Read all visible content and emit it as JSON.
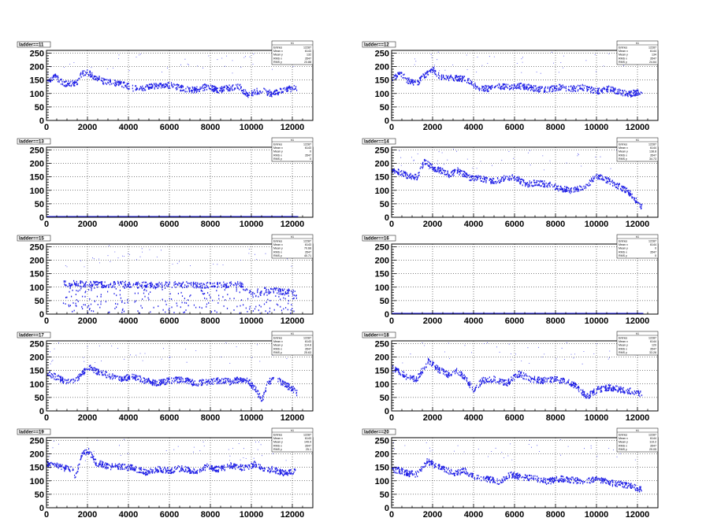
{
  "figure": {
    "footer": ""
  },
  "colors": {
    "marker": "#1f1fe6",
    "frame": "#000000",
    "grid": "#000000"
  },
  "chart_data": [
    {
      "type": "scatter",
      "title": "ladder==11",
      "xlim": [
        0,
        13000
      ],
      "ylim": [
        0,
        260
      ],
      "xticks": [
        "0",
        "2000",
        "4000",
        "6000",
        "8000",
        "10000",
        "12000"
      ],
      "yticks": [
        "0",
        "50",
        "100",
        "150",
        "200",
        "250"
      ],
      "stats": {
        "name": "h1",
        "rows": [
          {
            "label": "Entries",
            "value": "12287"
          },
          {
            "label": "Mean x",
            "value": "6143"
          },
          {
            "label": "Mean y",
            "value": "132"
          },
          {
            "label": "RMS x",
            "value": "3547"
          },
          {
            "label": "RMS y",
            "value": "23.88"
          }
        ]
      },
      "profile": [
        [
          0,
          150
        ],
        [
          400,
          165
        ],
        [
          800,
          140
        ],
        [
          1200,
          138
        ],
        [
          1500,
          145
        ],
        [
          1700,
          178
        ],
        [
          2000,
          182
        ],
        [
          2300,
          165
        ],
        [
          2700,
          150
        ],
        [
          3200,
          142
        ],
        [
          3800,
          135
        ],
        [
          4300,
          120
        ],
        [
          4700,
          122
        ],
        [
          5200,
          130
        ],
        [
          5700,
          135
        ],
        [
          6200,
          130
        ],
        [
          6700,
          120
        ],
        [
          7200,
          115
        ],
        [
          7800,
          128
        ],
        [
          8400,
          115
        ],
        [
          9000,
          125
        ],
        [
          9400,
          128
        ],
        [
          9800,
          95
        ],
        [
          10200,
          110
        ],
        [
          10600,
          112
        ],
        [
          11000,
          100
        ],
        [
          11600,
          118
        ],
        [
          12200,
          122
        ]
      ]
    },
    {
      "type": "scatter",
      "title": "ladder==12",
      "xlim": [
        0,
        13000
      ],
      "ylim": [
        0,
        260
      ],
      "xticks": [
        "0",
        "2000",
        "4000",
        "6000",
        "8000",
        "10000",
        "12000"
      ],
      "yticks": [
        "0",
        "50",
        "100",
        "150",
        "200",
        "250"
      ],
      "stats": {
        "name": "h1",
        "rows": [
          {
            "label": "Entries",
            "value": "12287"
          },
          {
            "label": "Mean x",
            "value": "6144"
          },
          {
            "label": "Mean y",
            "value": "134"
          },
          {
            "label": "RMS x",
            "value": "3547"
          },
          {
            "label": "RMS y",
            "value": "24.64"
          }
        ]
      },
      "profile": [
        [
          0,
          160
        ],
        [
          400,
          175
        ],
        [
          800,
          150
        ],
        [
          1200,
          140
        ],
        [
          1600,
          170
        ],
        [
          2000,
          190
        ],
        [
          2400,
          160
        ],
        [
          3000,
          160
        ],
        [
          3600,
          155
        ],
        [
          4200,
          125
        ],
        [
          4700,
          120
        ],
        [
          5200,
          128
        ],
        [
          5800,
          125
        ],
        [
          6400,
          130
        ],
        [
          7000,
          120
        ],
        [
          7600,
          118
        ],
        [
          8200,
          125
        ],
        [
          8800,
          120
        ],
        [
          9400,
          125
        ],
        [
          10000,
          110
        ],
        [
          10600,
          120
        ],
        [
          11000,
          110
        ],
        [
          11600,
          100
        ],
        [
          12200,
          112
        ]
      ]
    },
    {
      "type": "scatter",
      "title": "ladder==13",
      "xlim": [
        0,
        13000
      ],
      "ylim": [
        0,
        260
      ],
      "xticks": [
        "0",
        "2000",
        "4000",
        "6000",
        "8000",
        "10000",
        "12000"
      ],
      "yticks": [
        "0",
        "50",
        "100",
        "150",
        "200",
        "250"
      ],
      "stats": {
        "name": "h1",
        "rows": [
          {
            "label": "Entries",
            "value": "12287"
          },
          {
            "label": "Mean x",
            "value": "6143"
          },
          {
            "label": "Mean y",
            "value": "0"
          },
          {
            "label": "RMS x",
            "value": "3547"
          },
          {
            "label": "RMS y",
            "value": "0"
          }
        ]
      },
      "profile": [
        [
          0,
          1
        ],
        [
          12287,
          1
        ]
      ]
    },
    {
      "type": "scatter",
      "title": "ladder==14",
      "xlim": [
        0,
        13000
      ],
      "ylim": [
        0,
        260
      ],
      "xticks": [
        "0",
        "2000",
        "4000",
        "6000",
        "8000",
        "10000",
        "12000"
      ],
      "yticks": [
        "0",
        "50",
        "100",
        "150",
        "200",
        "250"
      ],
      "stats": {
        "name": "h1",
        "rows": [
          {
            "label": "Entries",
            "value": "12287"
          },
          {
            "label": "Mean x",
            "value": "6144"
          },
          {
            "label": "Mean y",
            "value": "138.8"
          },
          {
            "label": "RMS x",
            "value": "3547"
          },
          {
            "label": "RMS y",
            "value": "34.73"
          }
        ]
      },
      "profile": [
        [
          0,
          175
        ],
        [
          400,
          170
        ],
        [
          800,
          155
        ],
        [
          1200,
          150
        ],
        [
          1600,
          210
        ],
        [
          2000,
          185
        ],
        [
          2400,
          175
        ],
        [
          2800,
          160
        ],
        [
          3200,
          175
        ],
        [
          3800,
          150
        ],
        [
          4400,
          145
        ],
        [
          5000,
          135
        ],
        [
          5600,
          150
        ],
        [
          6000,
          150
        ],
        [
          6500,
          125
        ],
        [
          7000,
          130
        ],
        [
          7600,
          125
        ],
        [
          8200,
          110
        ],
        [
          8800,
          100
        ],
        [
          9400,
          115
        ],
        [
          10000,
          155
        ],
        [
          10500,
          140
        ],
        [
          11000,
          120
        ],
        [
          11500,
          100
        ],
        [
          11900,
          65
        ],
        [
          12200,
          40
        ]
      ]
    },
    {
      "type": "scatter",
      "title": "ladder==15",
      "xlim": [
        0,
        13000
      ],
      "ylim": [
        0,
        260
      ],
      "xticks": [
        "0",
        "2000",
        "4000",
        "6000",
        "8000",
        "10000",
        "12000"
      ],
      "yticks": [
        "0",
        "50",
        "100",
        "150",
        "200",
        "250"
      ],
      "stats": {
        "name": "h1",
        "rows": [
          {
            "label": "Entries",
            "value": "12287"
          },
          {
            "label": "Mean x",
            "value": "6143"
          },
          {
            "label": "Mean y",
            "value": "70.68"
          },
          {
            "label": "RMS x",
            "value": "3547"
          },
          {
            "label": "RMS y",
            "value": "40.71"
          }
        ]
      },
      "profile": [
        [
          800,
          115
        ],
        [
          1500,
          115
        ],
        [
          2500,
          112
        ],
        [
          3000,
          112
        ],
        [
          3700,
          115
        ],
        [
          4000,
          110
        ],
        [
          4500,
          110
        ],
        [
          5000,
          110
        ],
        [
          5600,
          112
        ],
        [
          6000,
          112
        ],
        [
          6600,
          112
        ],
        [
          7200,
          110
        ],
        [
          8000,
          110
        ],
        [
          8600,
          110
        ],
        [
          9400,
          112
        ],
        [
          9800,
          95
        ],
        [
          10200,
          72
        ],
        [
          10600,
          90
        ],
        [
          11000,
          90
        ],
        [
          11600,
          85
        ],
        [
          12200,
          80
        ]
      ]
    },
    {
      "type": "scatter",
      "title": "ladder==16",
      "xlim": [
        0,
        13000
      ],
      "ylim": [
        0,
        260
      ],
      "xticks": [
        "0",
        "2000",
        "4000",
        "6000",
        "8000",
        "10000",
        "12000"
      ],
      "yticks": [
        "0",
        "50",
        "100",
        "150",
        "200",
        "250"
      ],
      "stats": {
        "name": "h1",
        "rows": [
          {
            "label": "Entries",
            "value": "12287"
          },
          {
            "label": "Mean x",
            "value": "6144"
          },
          {
            "label": "Mean y",
            "value": "0"
          },
          {
            "label": "RMS x",
            "value": "3547"
          },
          {
            "label": "RMS y",
            "value": "0"
          }
        ]
      },
      "profile": [
        [
          0,
          1
        ],
        [
          12287,
          1
        ]
      ]
    },
    {
      "type": "scatter",
      "title": "ladder==17",
      "xlim": [
        0,
        13000
      ],
      "ylim": [
        0,
        260
      ],
      "xticks": [
        "0",
        "2000",
        "4000",
        "6000",
        "8000",
        "10000",
        "12000"
      ],
      "yticks": [
        "0",
        "50",
        "100",
        "150",
        "200",
        "250"
      ],
      "stats": {
        "name": "h1",
        "rows": [
          {
            "label": "Entries",
            "value": "12287"
          },
          {
            "label": "Mean x",
            "value": "6143"
          },
          {
            "label": "Mean y",
            "value": "114.8"
          },
          {
            "label": "RMS x",
            "value": "3547"
          },
          {
            "label": "RMS y",
            "value": "25.63"
          }
        ]
      },
      "profile": [
        [
          0,
          140
        ],
        [
          400,
          130
        ],
        [
          800,
          115
        ],
        [
          1200,
          110
        ],
        [
          1600,
          130
        ],
        [
          2000,
          165
        ],
        [
          2400,
          150
        ],
        [
          3000,
          135
        ],
        [
          3600,
          120
        ],
        [
          4200,
          130
        ],
        [
          4800,
          115
        ],
        [
          5400,
          105
        ],
        [
          6000,
          115
        ],
        [
          6600,
          120
        ],
        [
          7200,
          105
        ],
        [
          7800,
          110
        ],
        [
          8400,
          115
        ],
        [
          9000,
          110
        ],
        [
          9400,
          120
        ],
        [
          9800,
          115
        ],
        [
          10200,
          80
        ],
        [
          10500,
          40
        ],
        [
          10800,
          110
        ],
        [
          11200,
          120
        ],
        [
          11600,
          100
        ],
        [
          12000,
          85
        ],
        [
          12200,
          70
        ]
      ]
    },
    {
      "type": "scatter",
      "title": "ladder==18",
      "xlim": [
        0,
        13000
      ],
      "ylim": [
        0,
        260
      ],
      "xticks": [
        "0",
        "2000",
        "4000",
        "6000",
        "8000",
        "10000",
        "12000"
      ],
      "yticks": [
        "0",
        "50",
        "100",
        "150",
        "200",
        "250"
      ],
      "stats": {
        "name": "h1",
        "rows": [
          {
            "label": "Entries",
            "value": "12287"
          },
          {
            "label": "Mean x",
            "value": "6144"
          },
          {
            "label": "Mean y",
            "value": "120"
          },
          {
            "label": "RMS x",
            "value": "3547"
          },
          {
            "label": "RMS y",
            "value": "33.26"
          }
        ]
      },
      "profile": [
        [
          0,
          160
        ],
        [
          400,
          145
        ],
        [
          800,
          125
        ],
        [
          1200,
          120
        ],
        [
          1800,
          190
        ],
        [
          2200,
          160
        ],
        [
          2800,
          135
        ],
        [
          3200,
          150
        ],
        [
          3600,
          120
        ],
        [
          4000,
          80
        ],
        [
          4400,
          115
        ],
        [
          5000,
          120
        ],
        [
          5600,
          105
        ],
        [
          6200,
          140
        ],
        [
          6800,
          120
        ],
        [
          7400,
          115
        ],
        [
          8000,
          120
        ],
        [
          8600,
          110
        ],
        [
          9000,
          95
        ],
        [
          9500,
          55
        ],
        [
          10000,
          80
        ],
        [
          10600,
          90
        ],
        [
          11200,
          80
        ],
        [
          11800,
          75
        ],
        [
          12200,
          65
        ]
      ]
    },
    {
      "type": "scatter",
      "title": "ladder==19",
      "xlim": [
        0,
        13000
      ],
      "ylim": [
        0,
        260
      ],
      "xticks": [
        "0",
        "2000",
        "4000",
        "6000",
        "8000",
        "10000",
        "12000"
      ],
      "yticks": [
        "0",
        "50",
        "100",
        "150",
        "200",
        "250"
      ],
      "stats": {
        "name": "h1",
        "rows": [
          {
            "label": "Entries",
            "value": "12287"
          },
          {
            "label": "Mean x",
            "value": "6143"
          },
          {
            "label": "Mean y",
            "value": "149.9"
          },
          {
            "label": "RMS x",
            "value": "3547"
          },
          {
            "label": "RMS y",
            "value": "25.1"
          }
        ]
      },
      "profile": [
        [
          0,
          165
        ],
        [
          400,
          160
        ],
        [
          800,
          150
        ],
        [
          1200,
          145
        ],
        [
          1400,
          120
        ],
        [
          1700,
          200
        ],
        [
          2000,
          215
        ],
        [
          2400,
          170
        ],
        [
          3000,
          155
        ],
        [
          3600,
          155
        ],
        [
          4200,
          150
        ],
        [
          4800,
          135
        ],
        [
          5400,
          145
        ],
        [
          6000,
          140
        ],
        [
          6600,
          150
        ],
        [
          7200,
          135
        ],
        [
          7800,
          155
        ],
        [
          8400,
          145
        ],
        [
          9000,
          160
        ],
        [
          9600,
          150
        ],
        [
          10200,
          165
        ],
        [
          10600,
          140
        ],
        [
          11000,
          145
        ],
        [
          11600,
          130
        ],
        [
          12200,
          140
        ]
      ]
    },
    {
      "type": "scatter",
      "title": "ladder==20",
      "xlim": [
        0,
        13000
      ],
      "ylim": [
        0,
        260
      ],
      "xticks": [
        "0",
        "2000",
        "4000",
        "6000",
        "8000",
        "10000",
        "12000"
      ],
      "yticks": [
        "0",
        "50",
        "100",
        "150",
        "200",
        "250"
      ],
      "stats": {
        "name": "h1",
        "rows": [
          {
            "label": "Entries",
            "value": "12287"
          },
          {
            "label": "Mean x",
            "value": "6144"
          },
          {
            "label": "Mean y",
            "value": "119.2"
          },
          {
            "label": "RMS x",
            "value": "3547"
          },
          {
            "label": "RMS y",
            "value": "29.05"
          }
        ]
      },
      "profile": [
        [
          0,
          145
        ],
        [
          400,
          140
        ],
        [
          800,
          130
        ],
        [
          1200,
          125
        ],
        [
          1700,
          175
        ],
        [
          2100,
          160
        ],
        [
          2600,
          145
        ],
        [
          3000,
          130
        ],
        [
          3600,
          140
        ],
        [
          4000,
          115
        ],
        [
          4600,
          110
        ],
        [
          5200,
          100
        ],
        [
          5800,
          125
        ],
        [
          6400,
          115
        ],
        [
          7000,
          110
        ],
        [
          7600,
          100
        ],
        [
          8200,
          110
        ],
        [
          8800,
          105
        ],
        [
          9400,
          100
        ],
        [
          10000,
          110
        ],
        [
          10600,
          95
        ],
        [
          11200,
          90
        ],
        [
          11600,
          85
        ],
        [
          12200,
          70
        ]
      ]
    }
  ]
}
